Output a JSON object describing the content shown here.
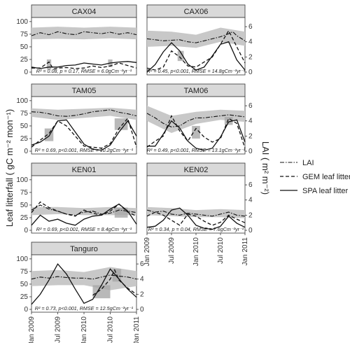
{
  "chart_data": {
    "type": "line",
    "ylabel_left": "Leaf  litterfall ( gC m⁻² mon⁻¹)",
    "ylabel_right": "LAI ( m² m⁻²)",
    "x_ticks": [
      "Jan 2009",
      "Jul 2009",
      "Jan 2010",
      "Jul 2010",
      "Jan 2011"
    ],
    "x_tick_values": [
      0,
      6,
      12,
      18,
      24
    ],
    "x_unit": "months since Jan 2009",
    "y_left_ticks": [
      "0",
      "25",
      "50",
      "75",
      "100"
    ],
    "y_left_values": [
      0,
      25,
      50,
      75,
      100
    ],
    "y_right_ticks": [
      "0",
      "2",
      "4",
      "6"
    ],
    "y_right_values": [
      0,
      2,
      4,
      6
    ],
    "ylim_left": [
      0,
      100
    ],
    "ylim_right": [
      0,
      6.67
    ],
    "legend": [
      "LAI",
      "GEM leaf litter",
      "SPA leaf litter"
    ],
    "legend_position": "right",
    "panels": [
      {
        "name": "CAX04",
        "stats": "R² = 0.08, p = 0.17, RMSE = 6.0gCm⁻²yr⁻¹",
        "lai": {
          "x": [
            0,
            2,
            4,
            6,
            8,
            10,
            12,
            14,
            16,
            18,
            20,
            22,
            24
          ],
          "y": [
            72,
            78,
            74,
            80,
            76,
            74,
            80,
            78,
            76,
            79,
            75,
            78,
            74
          ]
        },
        "band": {
          "x": [
            0,
            6,
            12,
            18,
            24
          ],
          "lo": [
            65,
            66,
            65,
            67,
            65
          ],
          "hi": [
            88,
            90,
            88,
            90,
            88
          ]
        },
        "gem": {
          "x": [
            0,
            2,
            4,
            5,
            6,
            8,
            10,
            12,
            14,
            16,
            18,
            20,
            22,
            24
          ],
          "y": [
            8,
            8,
            20,
            6,
            8,
            9,
            7,
            8,
            12,
            9,
            12,
            18,
            13,
            8
          ]
        },
        "spa": {
          "x": [
            0,
            2,
            4,
            6,
            8,
            10,
            12,
            14,
            16,
            18,
            20,
            22,
            24
          ],
          "y": [
            10,
            7,
            10,
            10,
            13,
            14,
            18,
            16,
            14,
            18,
            20,
            21,
            19
          ]
        },
        "hi_band": [
          {
            "x": [
              3.5,
              4.5
            ],
            "lo": 5,
            "hi": 25
          },
          {
            "x": [
              17.5,
              18.5
            ],
            "lo": 10,
            "hi": 25
          }
        ]
      },
      {
        "name": "CAX06",
        "stats": "R² = 0.45, p<0.001, RMSE = 14.8gCm⁻²yr⁻¹",
        "lai": {
          "x": [
            0,
            2,
            4,
            6,
            8,
            10,
            12,
            14,
            16,
            18,
            20,
            21,
            22,
            24
          ],
          "y": [
            66,
            64,
            62,
            63,
            64,
            60,
            58,
            62,
            66,
            70,
            76,
            80,
            72,
            62
          ]
        },
        "band": {
          "x": [
            0,
            6,
            12,
            18,
            24
          ],
          "lo": [
            50,
            52,
            48,
            60,
            52
          ],
          "hi": [
            82,
            80,
            74,
            88,
            80
          ]
        },
        "gem": {
          "x": [
            0,
            2,
            4,
            6,
            8,
            10,
            12,
            14,
            16,
            18,
            20,
            22,
            24
          ],
          "y": [
            8,
            4,
            10,
            42,
            30,
            12,
            10,
            20,
            30,
            55,
            82,
            50,
            18
          ]
        },
        "spa": {
          "x": [
            0,
            2,
            4,
            6,
            8,
            10,
            12,
            14,
            16,
            18,
            20,
            22,
            24
          ],
          "y": [
            0,
            15,
            40,
            58,
            42,
            16,
            4,
            10,
            32,
            55,
            60,
            24,
            4
          ]
        },
        "hi_band": [
          {
            "x": [
              7.5,
              9
            ],
            "lo": 22,
            "hi": 42
          }
        ]
      },
      {
        "name": "TAM05",
        "stats": "R² = 0.69, p<0.001, RMSE = 10.2gCm⁻²yr⁻¹",
        "lai": {
          "x": [
            0,
            2,
            4,
            6,
            8,
            10,
            12,
            14,
            16,
            18,
            20,
            22,
            24
          ],
          "y": [
            78,
            77,
            74,
            70,
            69,
            71,
            74,
            78,
            80,
            82,
            77,
            74,
            70
          ]
        },
        "band": {
          "x": [
            0,
            6,
            12,
            18,
            24
          ],
          "lo": [
            68,
            62,
            66,
            70,
            62
          ],
          "hi": [
            85,
            82,
            84,
            86,
            82
          ]
        },
        "gem": {
          "x": [
            0,
            2,
            4,
            6,
            8,
            10,
            12,
            14,
            16,
            18,
            20,
            22,
            24
          ],
          "y": [
            8,
            22,
            35,
            60,
            50,
            30,
            10,
            8,
            6,
            15,
            45,
            65,
            8
          ]
        },
        "spa": {
          "x": [
            0,
            2,
            4,
            6,
            8,
            10,
            12,
            14,
            16,
            18,
            20,
            22,
            24
          ],
          "y": [
            12,
            18,
            30,
            60,
            62,
            38,
            14,
            4,
            2,
            12,
            38,
            60,
            30
          ]
        },
        "hi_band": [
          {
            "x": [
              3,
              5
            ],
            "lo": 20,
            "hi": 45
          },
          {
            "x": [
              19,
              22
            ],
            "lo": 42,
            "hi": 65
          }
        ]
      },
      {
        "name": "TAM06",
        "stats": "R² = 0.49, p<0.001, RMSE = 13.1gCm⁻²yr⁻¹",
        "lai": {
          "x": [
            0,
            2,
            4,
            6,
            8,
            10,
            12,
            14,
            16,
            18,
            20,
            22,
            24
          ],
          "y": [
            75,
            66,
            55,
            48,
            50,
            60,
            66,
            66,
            68,
            70,
            72,
            70,
            68
          ]
        },
        "band": {
          "x": [
            0,
            6,
            12,
            18,
            24
          ],
          "lo": [
            60,
            36,
            54,
            62,
            58
          ],
          "hi": [
            90,
            70,
            78,
            82,
            80
          ]
        },
        "gem": {
          "x": [
            0,
            2,
            4,
            6,
            8,
            10,
            12,
            14,
            16,
            18,
            20,
            22,
            24
          ],
          "y": [
            8,
            20,
            30,
            70,
            40,
            20,
            45,
            28,
            18,
            25,
            65,
            55,
            6
          ]
        },
        "spa": {
          "x": [
            0,
            2,
            4,
            6,
            8,
            10,
            12,
            14,
            16,
            18,
            20,
            22,
            24
          ],
          "y": [
            10,
            10,
            34,
            60,
            46,
            20,
            6,
            2,
            6,
            28,
            58,
            62,
            18
          ]
        },
        "hi_band": [
          {
            "x": [
              11,
              13
            ],
            "lo": 25,
            "hi": 50
          },
          {
            "x": [
              19,
              21
            ],
            "lo": 52,
            "hi": 68
          }
        ]
      },
      {
        "name": "KEN01",
        "stats": "R² = 0.69, p<0.001, RMSE = 8.4gCm⁻²yr⁻¹",
        "lai": {
          "x": [
            0,
            2,
            4,
            6,
            8,
            10,
            12,
            14,
            16,
            18,
            20,
            22,
            24
          ],
          "y": [
            40,
            50,
            42,
            38,
            32,
            30,
            36,
            38,
            32,
            34,
            40,
            38,
            35
          ]
        },
        "band": {
          "x": [
            0,
            6,
            12,
            18,
            24
          ],
          "lo": [
            30,
            32,
            30,
            30,
            30
          ],
          "hi": [
            46,
            46,
            44,
            46,
            44
          ]
        },
        "gem": {
          "x": [
            0,
            2,
            4,
            6,
            8,
            10,
            12,
            14,
            16,
            18,
            20,
            22,
            24
          ],
          "y": [
            35,
            56,
            45,
            38,
            32,
            28,
            40,
            34,
            30,
            38,
            52,
            36,
            28
          ]
        },
        "spa": {
          "x": [
            0,
            2,
            4,
            6,
            8,
            10,
            12,
            14,
            16,
            18,
            20,
            22,
            24
          ],
          "y": [
            10,
            30,
            18,
            22,
            14,
            10,
            22,
            28,
            30,
            42,
            52,
            38,
            12
          ]
        },
        "hi_band": [
          {
            "x": [
              19,
              22
            ],
            "lo": 25,
            "hi": 45
          }
        ]
      },
      {
        "name": "KEN02",
        "stats": "R² = 0.34, p = 0.04, RMSE = 7.6gCm⁻²yr⁻¹",
        "lai": {
          "x": [
            0,
            2,
            4,
            6,
            8,
            10,
            12,
            14,
            16,
            18,
            20,
            22,
            24
          ],
          "y": [
            40,
            36,
            38,
            32,
            30,
            34,
            32,
            30,
            28,
            32,
            36,
            30,
            28
          ]
        },
        "band": {
          "x": [
            0,
            6,
            12,
            18,
            24
          ],
          "lo": [
            30,
            28,
            26,
            26,
            24
          ],
          "hi": [
            46,
            44,
            40,
            42,
            40
          ]
        },
        "gem": {
          "x": [
            0,
            2,
            4,
            6,
            8,
            10,
            12,
            14,
            16,
            18,
            20,
            22,
            24
          ],
          "y": [
            28,
            36,
            30,
            20,
            10,
            32,
            28,
            18,
            10,
            16,
            30,
            22,
            15
          ]
        },
        "spa": {
          "x": [
            0,
            2,
            4,
            6,
            8,
            10,
            12,
            14,
            16,
            18,
            20,
            22,
            24
          ],
          "y": [
            6,
            8,
            20,
            40,
            44,
            30,
            10,
            4,
            2,
            8,
            28,
            14,
            6
          ]
        },
        "hi_band": []
      },
      {
        "name": "Tanguro",
        "stats": "R² = 0.73, p<0.001, RMSE = 12.5gCm⁻²yr⁻¹",
        "lai": {
          "x": [
            0,
            2,
            4,
            6,
            8,
            10,
            12,
            14,
            16,
            18,
            20,
            22,
            24
          ],
          "y": [
            60,
            64,
            62,
            65,
            63,
            62,
            62,
            60,
            64,
            68,
            66,
            64,
            60
          ]
        },
        "band": {
          "x": [
            0,
            6,
            12,
            18,
            24
          ],
          "lo": [
            46,
            48,
            48,
            38,
            46
          ],
          "hi": [
            76,
            78,
            74,
            84,
            76
          ]
        },
        "gem": {
          "x": [
            14,
            16,
            18,
            19,
            20,
            22,
            24
          ],
          "y": [
            28,
            40,
            60,
            78,
            58,
            42,
            30
          ]
        },
        "spa": {
          "x": [
            0,
            2,
            4,
            6,
            8,
            10,
            12,
            14,
            16,
            18,
            20,
            22,
            24
          ],
          "y": [
            10,
            30,
            58,
            90,
            70,
            40,
            12,
            20,
            48,
            80,
            60,
            40,
            24
          ]
        },
        "hi_band": [
          {
            "x": [
              14,
              18
            ],
            "lo": 22,
            "hi": 48
          },
          {
            "x": [
              18.5,
              20.5
            ],
            "lo": 55,
            "hi": 80
          }
        ]
      }
    ]
  }
}
